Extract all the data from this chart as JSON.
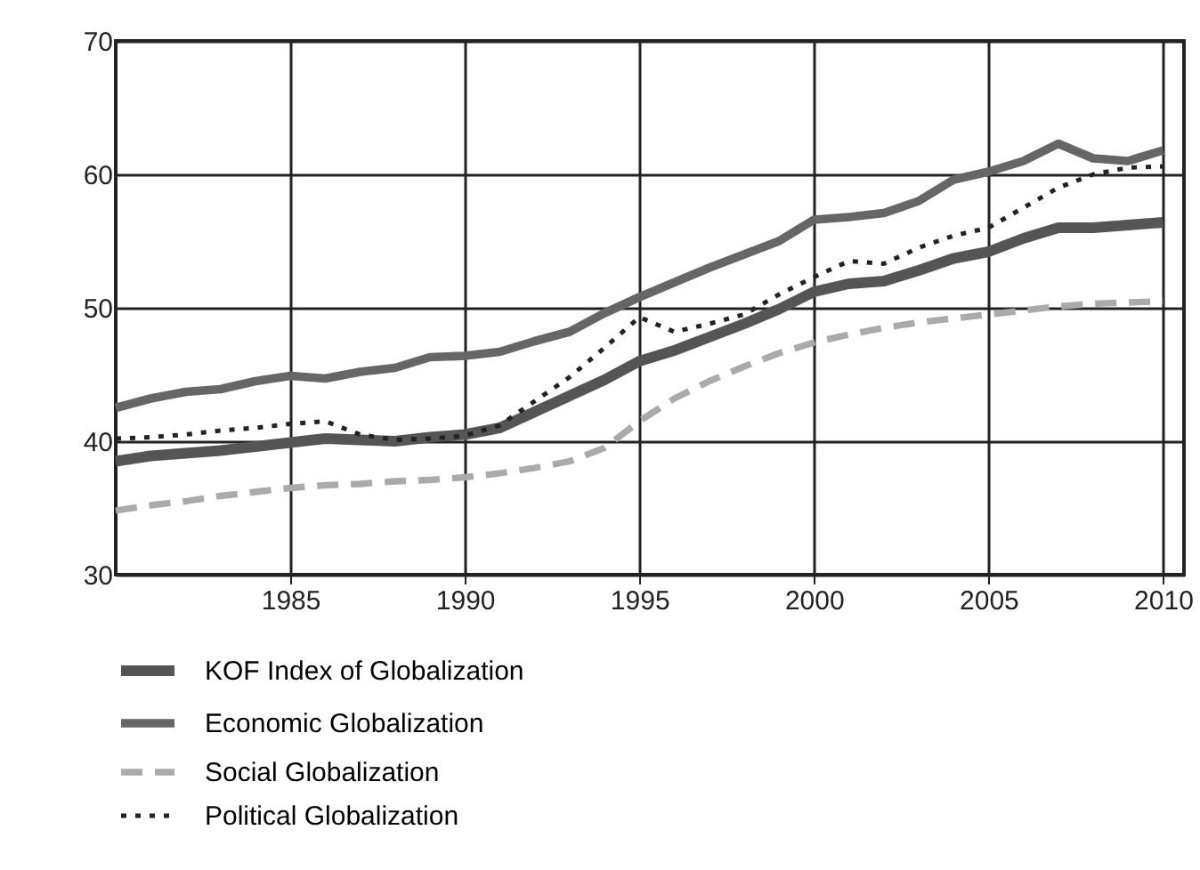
{
  "chart_data": {
    "type": "line",
    "x": [
      1980,
      1981,
      1982,
      1983,
      1984,
      1985,
      1986,
      1987,
      1988,
      1989,
      1990,
      1991,
      1992,
      1993,
      1994,
      1995,
      1996,
      1997,
      1998,
      1999,
      2000,
      2001,
      2002,
      2003,
      2004,
      2005,
      2006,
      2007,
      2008,
      2009,
      2010
    ],
    "series": [
      {
        "name": "KOF Index of Globalization",
        "color": "#555555",
        "line_style": "solid",
        "values": [
          38.5,
          38.9,
          39.1,
          39.3,
          39.6,
          39.9,
          40.2,
          40.1,
          40.0,
          40.3,
          40.5,
          41.0,
          42.2,
          43.4,
          44.6,
          46.0,
          46.8,
          47.8,
          48.8,
          49.9,
          51.2,
          51.8,
          52.0,
          52.8,
          53.7,
          54.2,
          55.2,
          56.0,
          56.0,
          56.2,
          56.4
        ]
      },
      {
        "name": "Economic Globalization",
        "color": "#666666",
        "line_style": "solid",
        "values": [
          42.5,
          43.2,
          43.7,
          43.9,
          44.5,
          44.9,
          44.7,
          45.2,
          45.5,
          46.3,
          46.4,
          46.7,
          47.5,
          48.2,
          49.6,
          50.8,
          51.9,
          53.0,
          54.0,
          55.0,
          56.6,
          56.8,
          57.1,
          58.0,
          59.6,
          60.2,
          61.0,
          62.3,
          61.2,
          61.0,
          61.8
        ]
      },
      {
        "name": "Social Globalization",
        "color": "#aaaaaa",
        "line_style": "dashed",
        "values": [
          34.8,
          35.2,
          35.5,
          35.9,
          36.2,
          36.5,
          36.7,
          36.8,
          37.0,
          37.1,
          37.3,
          37.6,
          38.0,
          38.5,
          39.5,
          41.5,
          43.2,
          44.5,
          45.6,
          46.6,
          47.4,
          48.0,
          48.5,
          48.9,
          49.2,
          49.5,
          49.8,
          50.1,
          50.3,
          50.4,
          50.5
        ]
      },
      {
        "name": "Political Globalization",
        "color": "#222222",
        "line_style": "dotted",
        "values": [
          40.2,
          40.3,
          40.5,
          40.8,
          41.0,
          41.3,
          41.5,
          40.5,
          40.1,
          40.2,
          40.4,
          41.2,
          43.0,
          44.8,
          47.0,
          49.3,
          48.2,
          48.8,
          49.5,
          51.0,
          52.3,
          53.5,
          53.3,
          54.5,
          55.4,
          56.0,
          57.5,
          59.0,
          60.0,
          60.5,
          60.6
        ]
      }
    ],
    "xlim": [
      1980,
      2010.6
    ],
    "xticks": [
      1985,
      1990,
      1995,
      2000,
      2005,
      2010
    ],
    "ylim": [
      30,
      70
    ],
    "yticks": [
      30,
      40,
      50,
      60,
      70
    ],
    "grid": true,
    "legend": "bottom"
  }
}
